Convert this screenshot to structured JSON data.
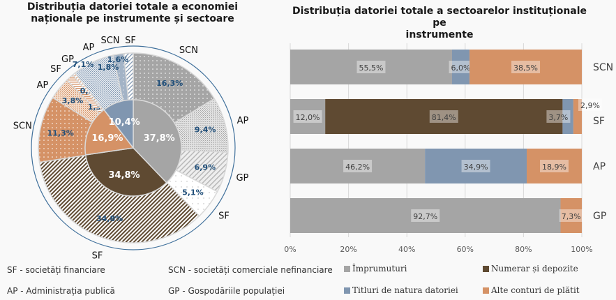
{
  "chart_data": [
    {
      "type": "pie",
      "title": "Distribuția datoriei totale a economiei naționale  pe instrumente și sectoare",
      "inner_ring": [
        {
          "instrument": "Împrumuturi",
          "value": 37.8,
          "label": "37,8%",
          "color": "#a5a5a5"
        },
        {
          "instrument": "Numerar și depozite",
          "value": 34.8,
          "label": "34,8%",
          "color": "#5f4a32"
        },
        {
          "instrument": "Alte conturi de plătit",
          "value": 16.9,
          "label": "16,9%",
          "color": "#d59266"
        },
        {
          "instrument": "Titluri de natura datoriei",
          "value": 10.4,
          "label": "10,4%",
          "color": "#8096b0"
        }
      ],
      "outer_ring": [
        {
          "sector": "SCN",
          "instrument": "Împrumuturi",
          "value": 16.3,
          "label": "16,3%",
          "color": "#a5a5a5",
          "pattern": "dots"
        },
        {
          "sector": "AP",
          "instrument": "Împrumuturi",
          "value": 9.4,
          "label": "9,4%",
          "color": "#a5a5a5",
          "pattern": "checker"
        },
        {
          "sector": "GP",
          "instrument": "Împrumuturi",
          "value": 6.9,
          "label": "6,9%",
          "color": "#a5a5a5",
          "pattern": "diag"
        },
        {
          "sector": "SF",
          "instrument": "Împrumuturi",
          "value": 5.1,
          "label": "5,1%",
          "color": "#ffffff",
          "pattern": "sparsedots"
        },
        {
          "sector": "SF",
          "instrument": "Numerar și depozite",
          "value": 34.8,
          "label": "34,8%",
          "color": "#5f4a32",
          "pattern": "diag"
        },
        {
          "sector": "SCN",
          "instrument": "Alte conturi de plătit",
          "value": 11.3,
          "label": "11,3%",
          "color": "#d59266",
          "pattern": "dots"
        },
        {
          "sector": "AP",
          "instrument": "Alte conturi de plătit",
          "value": 3.8,
          "label": "3,8%",
          "color": "#d59266",
          "pattern": "checker"
        },
        {
          "sector": "SF",
          "instrument": "Alte conturi de plătit",
          "value": 1.3,
          "label": "1,3%",
          "color": "#d59266",
          "pattern": "hstripe"
        },
        {
          "sector": "GP",
          "instrument": "Alte conturi de plătit",
          "value": 0.5,
          "label": "0,5%",
          "color": "#d59266",
          "pattern": "diag"
        },
        {
          "sector": "AP",
          "instrument": "Titluri de natura datoriei",
          "value": 7.1,
          "label": "7,1%",
          "color": "#8096b0",
          "pattern": "checker"
        },
        {
          "sector": "SCN",
          "instrument": "Titluri de natura datoriei",
          "value": 1.8,
          "label": "1,8%",
          "color": "#8096b0",
          "pattern": "solid"
        },
        {
          "sector": "SF",
          "instrument": "Titluri de natura datoriei",
          "value": 1.6,
          "label": "1,6%",
          "color": "#8096b0",
          "pattern": "diag"
        }
      ]
    },
    {
      "type": "bar",
      "orientation": "horizontal-stacked-100",
      "title": "Distribuția datoriei totale a sectoarelor instituționale pe instrumente",
      "categories": [
        "SCN",
        "SF",
        "AP",
        "GP"
      ],
      "series": [
        {
          "name": "Împrumuturi",
          "color": "#a5a5a5",
          "values": [
            55.5,
            12.0,
            46.2,
            92.7
          ],
          "labels": [
            "55,5%",
            "12,0%",
            "46,2%",
            "92,7%"
          ]
        },
        {
          "name": "Numerar și depozite",
          "color": "#5f4a32",
          "values": [
            0,
            81.4,
            0,
            0
          ],
          "labels": [
            "",
            "81,4%",
            "",
            ""
          ]
        },
        {
          "name": "Titluri de natura datoriei",
          "color": "#8096b0",
          "values": [
            6.0,
            3.7,
            34.9,
            0
          ],
          "labels": [
            "6,0%",
            "3,7%",
            "34,9%",
            ""
          ]
        },
        {
          "name": "Alte conturi de plătit",
          "color": "#d59266",
          "values": [
            38.5,
            2.9,
            18.9,
            7.3
          ],
          "labels": [
            "38,5%",
            "2,9%",
            "18,9%",
            "7,3%"
          ]
        }
      ],
      "xlim": [
        0,
        100
      ],
      "xticks": [
        "0%",
        "20%",
        "40%",
        "60%",
        "80%",
        "100%"
      ],
      "grid": true,
      "legend": "bottom"
    }
  ],
  "left_title": "Distribuția datoriei totale a economiei naționale  pe instrumente și sectoare",
  "left_title_line1": "Distribuția datoriei totale a economiei",
  "left_title_line2": "naționale  pe instrumente și sectoare",
  "right_title": "Distribuția datoriei totale a sectoarelor instituționale pe instrumente",
  "right_title_line1": "Distribuția datoriei totale a sectoarelor instituționale pe",
  "right_title_line2": "instrumente",
  "footnotes": {
    "sf": "SF - societăți financiare",
    "scn": "SCN - societăți comerciale nefinanciare",
    "ap": "AP - Administrația publică",
    "gp": "GP - Gospodăriile populației"
  },
  "legend": [
    {
      "label": "Împrumuturi",
      "color": "#a5a5a5"
    },
    {
      "label": "Numerar și depozite",
      "color": "#5f4a32"
    },
    {
      "label": "Titluri de natura datoriei",
      "color": "#8096b0"
    },
    {
      "label": "Alte conturi de plătit",
      "color": "#d59266"
    }
  ]
}
